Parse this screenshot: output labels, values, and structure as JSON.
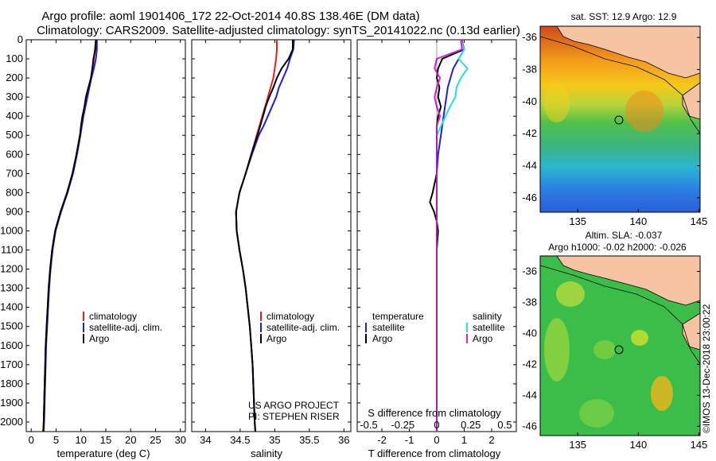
{
  "title": {
    "line1": "Argo profile: aoml 1901406_172 22-Oct-2014 40.8S 138.46E (DM data)",
    "line2": "Climatology: CARS2009. Satellite-adjusted climatology: synTS_20141022.nc (0.13d earlier)"
  },
  "colors": {
    "climatology": "#ee1c1c",
    "satellite": "#1f1fe0",
    "argo": "#000000",
    "sal_satellite": "#21dfe6",
    "sal_argo": "#e020e0"
  },
  "depth_ticks": [
    "0",
    "100",
    "200",
    "300",
    "400",
    "500",
    "600",
    "700",
    "800",
    "900",
    "1000",
    "1100",
    "1200",
    "1300",
    "1400",
    "1500",
    "1600",
    "1700",
    "1800",
    "1900",
    "2000"
  ],
  "legend": {
    "climatology": "climatology",
    "satellite_adj": "satellite-adj. clim.",
    "argo": "Argo"
  },
  "panel_diff": {
    "temperature_header": "temperature",
    "salinity_header": "salinity",
    "satellite": "satellite",
    "argo": "Argo",
    "s_label": "S difference from climatology",
    "s_ticks": [
      "-0.5",
      "-0.25",
      "0",
      "0.25",
      "0.5"
    ],
    "t_label": "T difference from climatology",
    "t_ticks": [
      "-2",
      "-1",
      "0",
      "1",
      "2"
    ]
  },
  "credit": {
    "line1": "US ARGO PROJECT",
    "line2": "PI: STEPHEN RISER",
    "imos": "©IMOS 13-Dec-2018 23:00:22"
  },
  "map_sst": {
    "title": "sat. SST: 12.9 Argo: 12.9",
    "lat_ticks": [
      "-36",
      "-38",
      "-40",
      "-42",
      "-44",
      "-46"
    ],
    "lon_ticks": [
      "135",
      "140",
      "145"
    ]
  },
  "map_sla": {
    "title1": "Altim. SLA: -0.037",
    "title2": "Argo h1000: -0.02 h2000: -0.026",
    "lat_ticks": [
      "-36",
      "-38",
      "-40",
      "-42",
      "-44",
      "-46"
    ],
    "lon_ticks": [
      "135",
      "140",
      "145"
    ]
  },
  "chart_data": [
    {
      "type": "line",
      "xlabel": "temperature (deg C)",
      "ylabel": "",
      "xlim": [
        -1,
        31
      ],
      "ylim": [
        2050,
        0
      ],
      "x_ticks": [
        "0",
        "5",
        "10",
        "15",
        "20",
        "25",
        "30"
      ],
      "depth": [
        0,
        50,
        100,
        150,
        200,
        250,
        300,
        350,
        400,
        450,
        500,
        600,
        700,
        800,
        900,
        1000,
        1100,
        1200,
        1300,
        1400,
        1500,
        1600,
        1700,
        1800,
        1900,
        2000,
        2050
      ],
      "series": [
        {
          "name": "climatology",
          "values": [
            13.0,
            12.8,
            12.6,
            12.3,
            12.0,
            11.6,
            11.2,
            10.8,
            10.4,
            10.1,
            9.8,
            9.1,
            8.3,
            7.2,
            5.9,
            4.8,
            4.2,
            3.8,
            3.5,
            3.3,
            3.1,
            2.9,
            2.8,
            2.7,
            2.6,
            2.5,
            2.4
          ]
        },
        {
          "name": "satellite-adj. clim.",
          "values": [
            13.2,
            13.2,
            13.0,
            12.6,
            12.1,
            11.7,
            11.3,
            10.9,
            10.5,
            10.2,
            9.9,
            9.2,
            8.4,
            7.3,
            6.0,
            4.9,
            4.3,
            3.9,
            3.6,
            3.4,
            3.2,
            3.0,
            2.9,
            2.8,
            2.7,
            2.6,
            2.5
          ]
        },
        {
          "name": "Argo",
          "values": [
            13.0,
            12.9,
            12.5,
            12.3,
            12.0,
            11.5,
            11.0,
            10.7,
            10.3,
            10.0,
            9.8,
            9.1,
            8.3,
            7.2,
            5.9,
            4.8,
            4.2,
            3.8,
            3.5,
            3.3,
            3.1,
            2.9,
            2.8,
            2.7,
            2.6,
            2.5,
            2.4
          ]
        }
      ]
    },
    {
      "type": "line",
      "xlabel": "salinity",
      "ylabel": "",
      "xlim": [
        33.8,
        36.1
      ],
      "ylim": [
        2050,
        0
      ],
      "x_ticks": [
        "34",
        "34.5",
        "35",
        "35.5",
        "36"
      ],
      "depth": [
        0,
        50,
        100,
        150,
        200,
        250,
        300,
        350,
        400,
        450,
        500,
        600,
        700,
        800,
        900,
        1000,
        1100,
        1200,
        1300,
        1400,
        1500,
        1600,
        1700,
        1800,
        1900,
        2000,
        2050
      ],
      "series": [
        {
          "name": "climatology",
          "values": [
            35.03,
            35.03,
            35.02,
            35.0,
            34.98,
            34.94,
            34.9,
            34.86,
            34.82,
            34.78,
            34.74,
            34.66,
            34.58,
            34.49,
            34.44,
            34.45,
            34.49,
            34.54,
            34.58,
            34.61,
            34.64,
            34.66,
            34.68,
            34.69,
            34.7,
            34.71,
            34.72
          ]
        },
        {
          "name": "satellite-adj. clim.",
          "values": [
            35.28,
            35.27,
            35.22,
            35.18,
            35.12,
            35.06,
            35.02,
            34.96,
            34.9,
            34.84,
            34.77,
            34.67,
            34.58,
            34.49,
            34.44,
            34.45,
            34.49,
            34.54,
            34.58,
            34.61,
            34.64,
            34.66,
            34.68,
            34.69,
            34.7,
            34.71,
            34.72
          ]
        },
        {
          "name": "Argo",
          "values": [
            35.26,
            35.26,
            35.2,
            35.1,
            35.03,
            34.98,
            34.92,
            34.87,
            34.83,
            34.79,
            34.75,
            34.66,
            34.58,
            34.49,
            34.44,
            34.45,
            34.49,
            34.54,
            34.58,
            34.61,
            34.64,
            34.66,
            34.68,
            34.69,
            34.7,
            34.71,
            34.72
          ]
        }
      ]
    },
    {
      "type": "line",
      "xlabel": "T difference from climatology",
      "ylabel": "",
      "xlim": [
        -2.9,
        2.9
      ],
      "ylim": [
        2050,
        0
      ],
      "x_ticks": [
        "-2",
        "-1",
        "0",
        "1",
        "2"
      ],
      "secondary_xlabel": "S difference from climatology",
      "secondary_x_ticks": [
        "-0.5",
        "-0.25",
        "0",
        "0.25",
        "0.5"
      ],
      "depth": [
        0,
        50,
        100,
        150,
        200,
        250,
        300,
        350,
        400,
        450,
        500,
        600,
        700,
        800,
        850,
        900,
        950,
        1000,
        1100,
        1200,
        1300,
        1400,
        1500,
        1600,
        1700,
        1800,
        1900,
        2000,
        2050
      ],
      "series": [
        {
          "name": "temperature satellite",
          "values": [
            0.9,
            1.0,
            0.8,
            0.6,
            0.5,
            0.4,
            0.35,
            0.3,
            0.25,
            0.2,
            0.15,
            0.05,
            0.0,
            0.0,
            0.0,
            0.0,
            0.0,
            0.0,
            0.0,
            0.0,
            0.0,
            0.0,
            0.0,
            0.0,
            0.0,
            0.0,
            0.0,
            0.0,
            0.0
          ]
        },
        {
          "name": "temperature Argo",
          "values": [
            0.9,
            1.0,
            0.2,
            0.05,
            0.0,
            0.1,
            0.05,
            0.15,
            0.05,
            0.0,
            0.0,
            0.0,
            0.0,
            -0.15,
            -0.25,
            -0.1,
            0.0,
            0.05,
            0.0,
            0.0,
            0.0,
            0.0,
            0.0,
            0.0,
            0.0,
            0.0,
            0.0,
            0.0,
            0.0
          ]
        },
        {
          "name": "salinity satellite",
          "values": [
            0.22,
            0.25,
            0.2,
            0.28,
            0.22,
            0.18,
            0.17,
            0.12,
            0.08,
            0.04,
            0.0,
            0.0,
            0.0,
            0.0,
            0.0,
            0.0,
            0.0,
            0.0,
            0.0,
            0.0,
            0.0,
            0.0,
            0.0,
            0.0,
            0.0,
            0.0,
            0.0,
            0.0,
            0.0
          ]
        },
        {
          "name": "salinity Argo",
          "values": [
            0.22,
            0.23,
            0.0,
            -0.02,
            0.03,
            0.0,
            -0.02,
            0.0,
            0.03,
            0.0,
            0.0,
            0.0,
            0.0,
            0.0,
            0.0,
            0.0,
            0.0,
            0.0,
            0.0,
            0.0,
            0.0,
            0.0,
            0.0,
            0.0,
            0.0,
            0.0,
            0.0,
            0.0,
            0.0
          ]
        }
      ]
    }
  ]
}
